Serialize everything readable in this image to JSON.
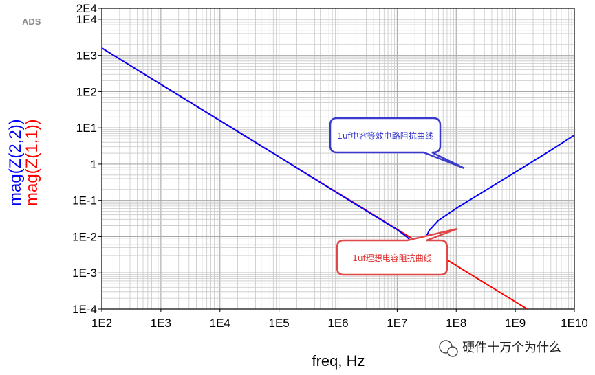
{
  "app_label": "ADS",
  "watermark": "硬件十万个为什么",
  "chart_data": {
    "type": "line",
    "xlabel": "freq, Hz",
    "ylabels": [
      {
        "text": "mag(Z(2,2))",
        "color": "#0000ff"
      },
      {
        "text": "mag(Z(1,1))",
        "color": "#ff0000"
      }
    ],
    "x_scale": "log",
    "y_scale": "log",
    "xlim": [
      100,
      10000000000
    ],
    "ylim": [
      0.0001,
      20000
    ],
    "x_ticks": [
      "1E2",
      "1E3",
      "1E4",
      "1E5",
      "1E6",
      "1E7",
      "1E8",
      "1E9",
      "1E10"
    ],
    "y_ticks": [
      "1E-4",
      "1E-3",
      "1E-2",
      "1E-1",
      "1",
      "1E1",
      "1E2",
      "1E3",
      "1E4",
      "2E4"
    ],
    "grid": true,
    "series": [
      {
        "name": "mag(Z(1,1))",
        "color": "#ff0000",
        "x": [
          100,
          1000,
          10000,
          100000,
          1000000,
          10000000,
          100000000,
          1000000000,
          10000000000
        ],
        "y": [
          1592,
          159.2,
          15.92,
          1.592,
          0.1592,
          0.01592,
          0.001592,
          0.0001592,
          1.592e-05
        ]
      },
      {
        "name": "mag(Z(2,2))",
        "color": "#0000ff",
        "x": [
          100,
          1000,
          10000,
          100000,
          1000000,
          10000000,
          15000000,
          20000000,
          23000000,
          27000000,
          35000000,
          50000000,
          100000000,
          300000000,
          1000000000,
          3000000000,
          10000000000
        ],
        "y": [
          1592,
          159,
          15.9,
          1.59,
          0.155,
          0.0155,
          0.0095,
          0.0055,
          0.0025,
          0.006,
          0.015,
          0.028,
          0.06,
          0.18,
          0.6,
          1.8,
          6.3
        ]
      }
    ],
    "annotations": [
      {
        "text": "1uf电容等效电路阻抗曲线",
        "style": "blue-callout",
        "points_to_x": 300000000,
        "points_to_y": 0.18
      },
      {
        "text": "1uf理想电容阻抗曲线",
        "style": "red-callout",
        "points_to_x": 100000000,
        "points_to_y": 0.0016
      }
    ]
  }
}
